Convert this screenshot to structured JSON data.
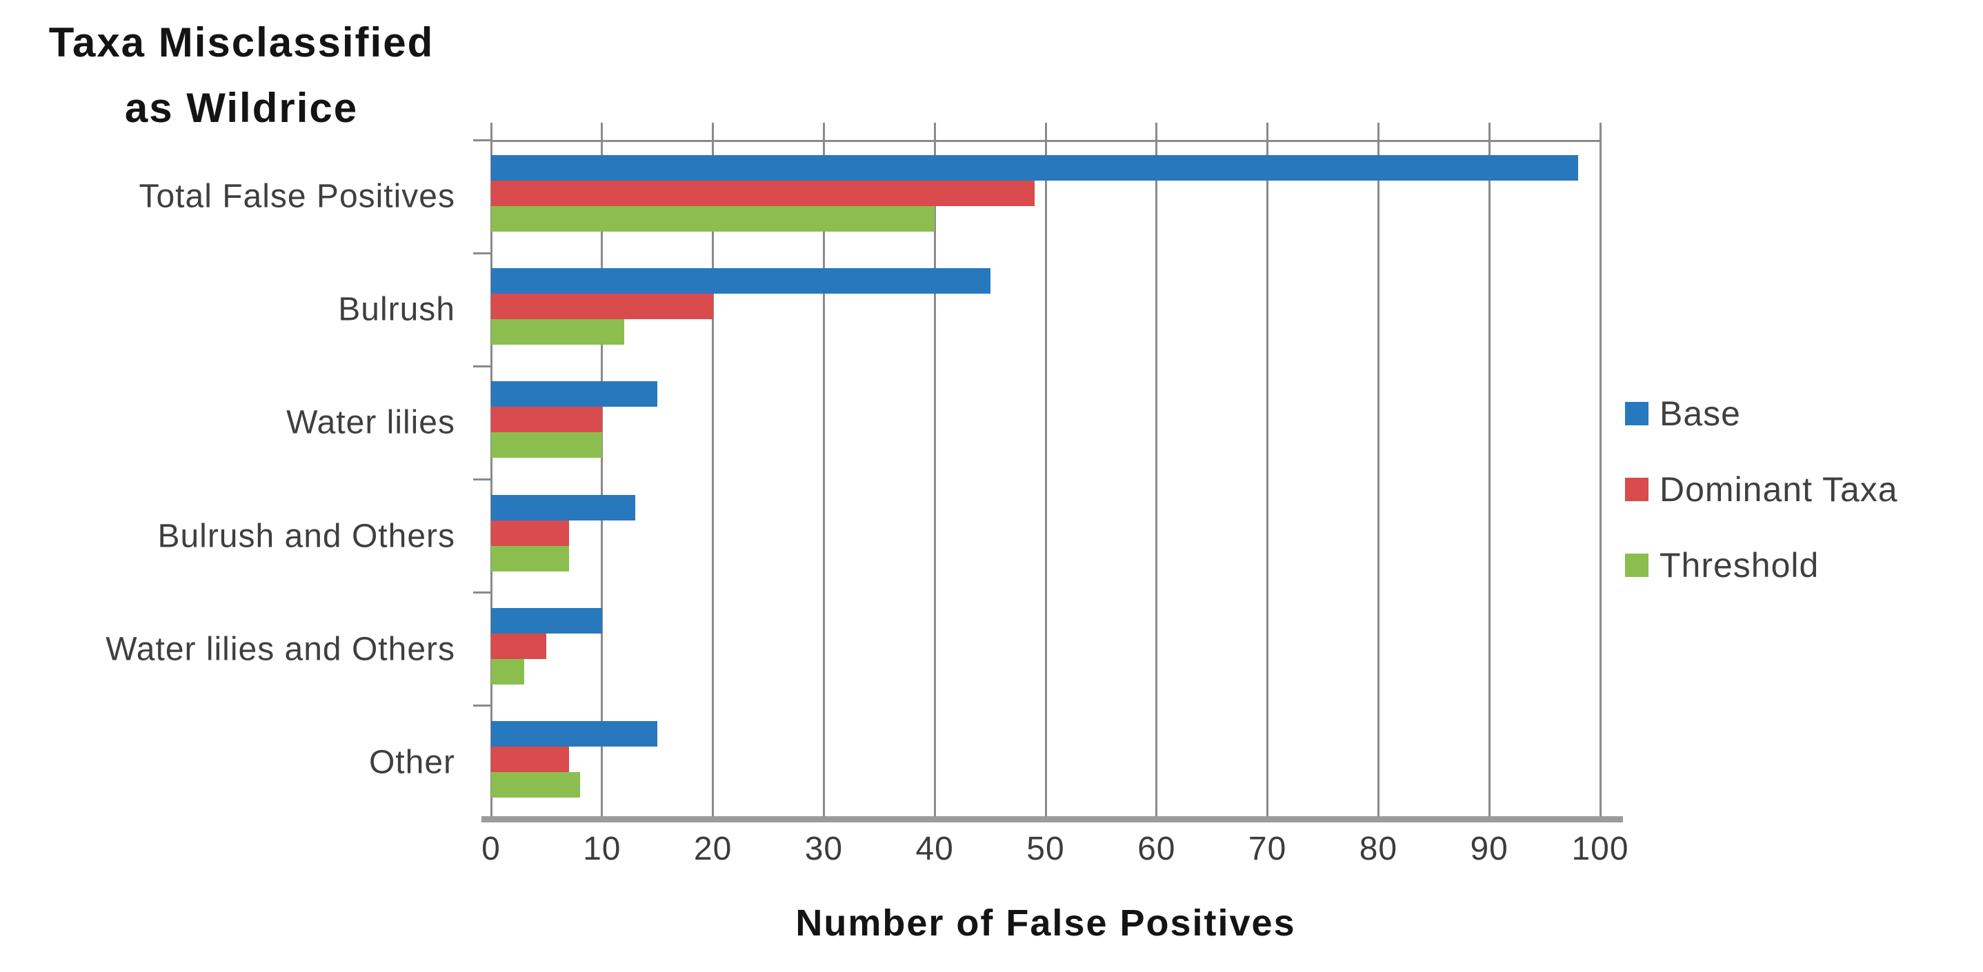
{
  "title": {
    "lines": [
      "Taxa Misclassified",
      "as Wildrice"
    ]
  },
  "x_axis": {
    "title": "Number of False Positives"
  },
  "chart_data": {
    "type": "bar",
    "orientation": "horizontal",
    "title": "Taxa Misclassified as Wildrice",
    "xlabel": "Number of False Positives",
    "ylabel": "",
    "xlim": [
      0,
      100
    ],
    "xticks": [
      0,
      10,
      20,
      30,
      40,
      50,
      60,
      70,
      80,
      90,
      100
    ],
    "grid": "vertical",
    "legend_position": "right",
    "categories": [
      "Total False Positives",
      "Bulrush",
      "Water lilies",
      "Bulrush and Others",
      "Water lilies and Others",
      "Other"
    ],
    "series": [
      {
        "name": "Base",
        "color": "#2878BE",
        "values": [
          98,
          45,
          15,
          13,
          10,
          15
        ]
      },
      {
        "name": "Dominant Taxa",
        "color": "#D94B4D",
        "values": [
          49,
          20,
          10,
          7,
          5,
          7
        ]
      },
      {
        "name": "Threshold",
        "color": "#8CBE4F",
        "values": [
          40,
          12,
          10,
          7,
          3,
          8
        ]
      }
    ]
  },
  "colors": {
    "gridline": "#8A8A8A",
    "axis_line": "#9B9B9B",
    "label_text": "#3F3F3F",
    "title_text": "#141414"
  }
}
